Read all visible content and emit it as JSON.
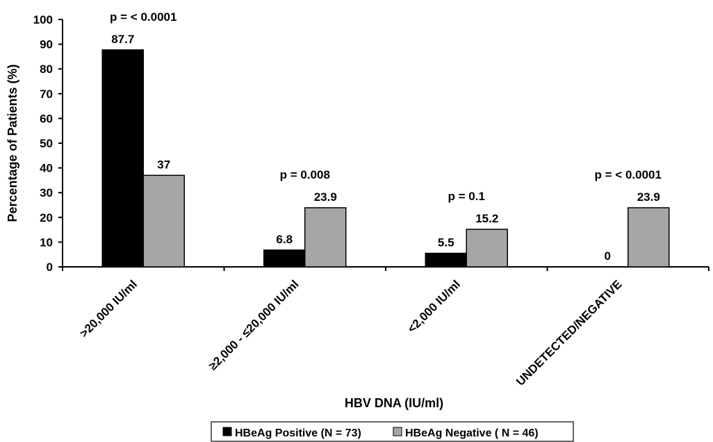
{
  "chart_data": {
    "type": "bar",
    "categories": [
      ">20,000 IU/ml",
      "≥2,000 - ≤20,000 IU/ml",
      "<2,000 IU/ml",
      "UNDETECTED/NEGATIVE"
    ],
    "series": [
      {
        "name": "HBeAg Positive (N = 73)",
        "values": [
          87.7,
          6.8,
          5.5,
          0
        ],
        "labels": [
          "87.7",
          "6.8",
          "5.5",
          "0"
        ],
        "color": "#000000"
      },
      {
        "name": "HBeAg Negative ( N = 46)",
        "values": [
          37,
          23.9,
          15.2,
          23.9
        ],
        "labels": [
          "37",
          "23.9",
          "15.2",
          "23.9"
        ],
        "color": "#a6a6a6"
      }
    ],
    "p_values": [
      "p = < 0.0001",
      "p = 0.008",
      "p = 0.1",
      "p = < 0.0001"
    ],
    "xlabel": "HBV DNA (IU/ml)",
    "ylabel": "Percentage of Patients (%)",
    "ylim": [
      0,
      100
    ],
    "yticks": [
      0,
      10,
      20,
      30,
      40,
      50,
      60,
      70,
      80,
      90,
      100
    ],
    "grid": false,
    "legend_position": "bottom"
  }
}
